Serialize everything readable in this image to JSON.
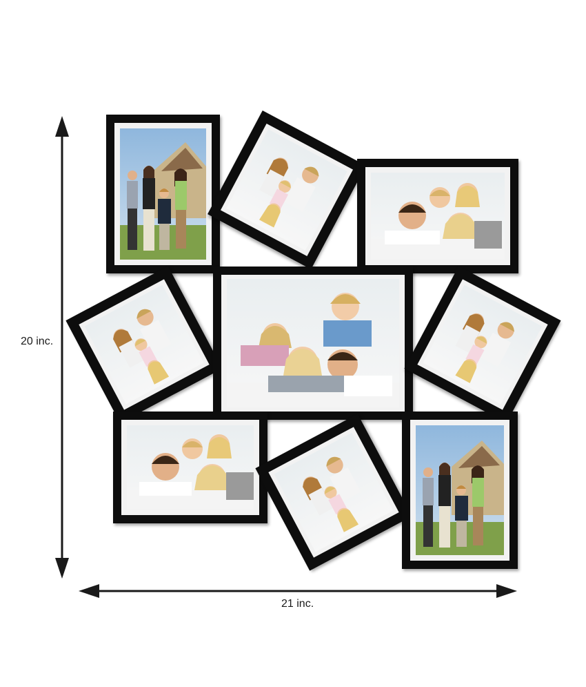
{
  "dimensions": {
    "height_label": "20 inc.",
    "width_label": "21 inc."
  },
  "colors": {
    "frame": "#0d0d0d",
    "mat": "#f2f2f2",
    "arrow": "#1a1a1a"
  },
  "frames": [
    {
      "orientation": "portrait",
      "photo": "family-outdoors"
    },
    {
      "orientation": "square-tilted",
      "photo": "family-pyramid"
    },
    {
      "orientation": "landscape",
      "photo": "family-lying"
    },
    {
      "orientation": "square-tilted",
      "photo": "family-pyramid"
    },
    {
      "orientation": "landscape",
      "photo": "family-piled"
    },
    {
      "orientation": "square-tilted",
      "photo": "family-pyramid"
    },
    {
      "orientation": "landscape",
      "photo": "family-lying"
    },
    {
      "orientation": "square-tilted",
      "photo": "family-pyramid"
    },
    {
      "orientation": "portrait",
      "photo": "family-outdoors"
    }
  ]
}
